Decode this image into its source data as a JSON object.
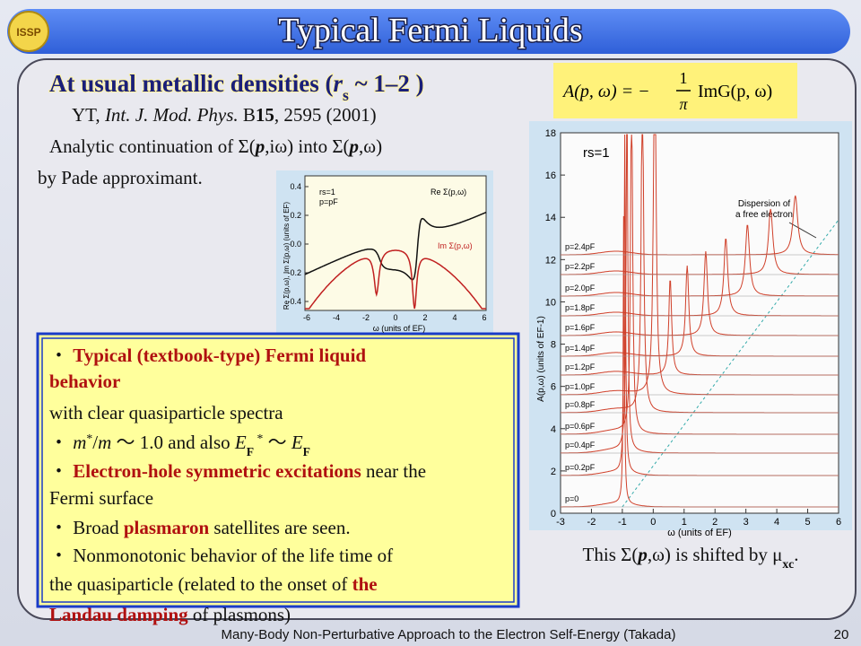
{
  "header": {
    "title": "Typical Fermi Liquids",
    "logo": "ISSP"
  },
  "heading": [
    {
      "t": "At usual metallic densities (",
      "s": "b"
    },
    {
      "t": "r",
      "s": "bi"
    },
    {
      "t": "s",
      "s": "sub"
    },
    {
      "t": " ~ 1–2 )",
      "s": "b"
    }
  ],
  "reference": [
    {
      "t": "YT, ",
      "s": "n"
    },
    {
      "t": "Int. J. Mod. Phys.",
      "s": "i"
    },
    {
      "t": " B",
      "s": "n"
    },
    {
      "t": "15",
      "s": "b"
    },
    {
      "t": ", 2595 (2001)",
      "s": "n"
    }
  ],
  "analytic": [
    {
      "t": "Analytic continuation of Σ(",
      "s": "n"
    },
    {
      "t": "p",
      "s": "bi"
    },
    {
      "t": ",iω) into Σ(",
      "s": "n"
    },
    {
      "t": "p",
      "s": "bi"
    },
    {
      "t": ",ω)",
      "s": "n"
    }
  ],
  "pade": [
    {
      "t": "by Pade approximant.",
      "s": "n"
    }
  ],
  "formula": {
    "lhs": "A(p, ω) = −",
    "num": "1",
    "den": "π",
    "rhs": "ImG(p, ω)"
  },
  "small_plot": {
    "yticks": [
      "0.4",
      "0.2",
      "0.0",
      "-0.2",
      "-0.4"
    ],
    "xticks": [
      "-6",
      "-4",
      "-2",
      "0",
      "2",
      "4",
      "6"
    ],
    "params": [
      "rs=1",
      "p=pF"
    ],
    "re_label": "Re Σ(p,ω)",
    "im_label": "Im Σ(p,ω)",
    "ylabel": "Re Σ(p,ω), Im Σ(p,ω) (units of EF)",
    "xlabel": "ω (units of EF)"
  },
  "big_plot": {
    "yticks": [
      "0",
      "2",
      "4",
      "6",
      "8",
      "10",
      "12",
      "14",
      "16",
      "18"
    ],
    "xticks": [
      "-3",
      "-2",
      "-1",
      "0",
      "1",
      "2",
      "3",
      "4",
      "5",
      "6"
    ],
    "rs": "rs=1",
    "annotation": [
      "Dispersion of",
      "a free electron"
    ],
    "ylabel": "A(p,ω)    (units of EF-1)",
    "xlabel": "ω   (units of EF)",
    "curve_labels": [
      "p=0",
      "p=0.2pF",
      "p=0.4pF",
      "p=0.6pF",
      "p=0.8pF",
      "p=1.0pF",
      "p=1.2pF",
      "p=1.4pF",
      "p=1.6pF",
      "p=1.8pF",
      "p=2.0pF",
      "p=2.2pF",
      "p=2.4pF"
    ]
  },
  "bullets": [
    [
      {
        "t": "・ ",
        "s": "n"
      },
      {
        "t": "Typical (textbook-type) Fermi liquid",
        "s": "r"
      }
    ],
    [
      {
        "t": "behavior",
        "s": "r"
      }
    ],
    [
      {
        "t": "  with clear quasiparticle spectra",
        "s": "n"
      }
    ],
    [
      {
        "t": "・ ",
        "s": "n"
      },
      {
        "t": "m",
        "s": "i"
      },
      {
        "t": "*",
        "s": "sup"
      },
      {
        "t": "/",
        "s": "n"
      },
      {
        "t": "m",
        "s": "i"
      },
      {
        "t": " ～ 1.0 and also ",
        "s": "n"
      },
      {
        "t": "E",
        "s": "i"
      },
      {
        "t": "F",
        "s": "sub"
      },
      {
        "t": " *",
        "s": "sup"
      },
      {
        "t": " ～ ",
        "s": "n"
      },
      {
        "t": "E",
        "s": "i"
      },
      {
        "t": "F",
        "s": "sub"
      }
    ],
    [
      {
        "t": "・ ",
        "s": "n"
      },
      {
        "t": "Electron-hole symmetric excitations",
        "s": "r"
      },
      {
        "t": " near the",
        "s": "n"
      }
    ],
    [
      {
        "t": "  Fermi surface",
        "s": "n"
      }
    ],
    [
      {
        "t": "・ Broad ",
        "s": "n"
      },
      {
        "t": "plasmaron",
        "s": "r"
      },
      {
        "t": " satellites are seen.",
        "s": "n"
      }
    ],
    [
      {
        "t": "・  Nonmonotonic behavior of the life time of",
        "s": "n"
      }
    ],
    [
      {
        "t": "  the quasiparticle (related to the onset of ",
        "s": "n"
      },
      {
        "t": "the",
        "s": "r"
      }
    ],
    [
      {
        "t": "  Landau damping",
        "s": "r"
      },
      {
        "t": " of plasmons)",
        "s": "n"
      }
    ]
  ],
  "caption": [
    {
      "t": "This Σ(",
      "s": "n"
    },
    {
      "t": "p",
      "s": "bi"
    },
    {
      "t": ",ω) is shifted by μ",
      "s": "n"
    },
    {
      "t": "xc",
      "s": "sub"
    },
    {
      "t": ".",
      "s": "n"
    }
  ],
  "footer": {
    "text": "Many-Body Non-Perturbative Approach to the Electron Self-Energy (Takada)",
    "page": "20"
  }
}
